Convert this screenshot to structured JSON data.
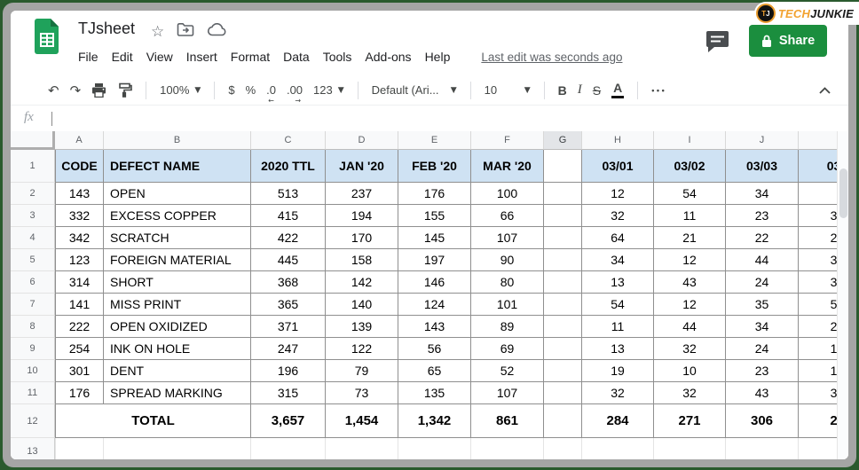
{
  "titlebar": {
    "title": "TJsheet",
    "menu": [
      "File",
      "Edit",
      "View",
      "Insert",
      "Format",
      "Data",
      "Tools",
      "Add-ons",
      "Help"
    ],
    "last_edit": "Last edit was seconds ago",
    "share": "Share",
    "brand_tech": "TECH",
    "brand_junkie": "JUNKIE",
    "brand_t": "T",
    "brand_j": "J"
  },
  "toolbar": {
    "undo": "↶",
    "redo": "↷",
    "zoom": "100%",
    "format_currency": "$",
    "format_percent": "%",
    "decrease_decimal": ".0",
    "increase_decimal": ".00",
    "more_formats": "123",
    "font_family": "Default (Ari...",
    "font_size": "10",
    "bold": "B",
    "italic": "I",
    "strikethrough": "S",
    "text_color": "A",
    "more": "•••"
  },
  "formula_bar": {
    "label": "fx"
  },
  "colors": {
    "share_green": "#1b8e3e",
    "header_fill": "#cfe2f3",
    "brand_orange": "#f2a230",
    "frame_green": "#2a5a2e",
    "frame_gray": "#a5a5a5"
  },
  "grid": {
    "columns": [
      "A",
      "B",
      "C",
      "D",
      "E",
      "F",
      "G",
      "H",
      "I",
      "J",
      ""
    ],
    "selected_column_index": 6,
    "row_numbers": [
      "1",
      "2",
      "3",
      "4",
      "5",
      "6",
      "7",
      "8",
      "9",
      "10",
      "11",
      "12",
      "13"
    ],
    "header": [
      "CODE",
      "DEFECT NAME",
      "2020 TTL",
      "JAN '20",
      "FEB '20",
      "MAR '20",
      "",
      "03/01",
      "03/02",
      "03/03",
      "03"
    ],
    "rows": [
      [
        "143",
        "OPEN",
        "513",
        "237",
        "176",
        "100",
        "",
        "12",
        "54",
        "34",
        ""
      ],
      [
        "332",
        "EXCESS COPPER",
        "415",
        "194",
        "155",
        "66",
        "",
        "32",
        "11",
        "23",
        "3"
      ],
      [
        "342",
        "SCRATCH",
        "422",
        "170",
        "145",
        "107",
        "",
        "64",
        "21",
        "22",
        "2"
      ],
      [
        "123",
        "FOREIGN MATERIAL",
        "445",
        "158",
        "197",
        "90",
        "",
        "34",
        "12",
        "44",
        "3"
      ],
      [
        "314",
        "SHORT",
        "368",
        "142",
        "146",
        "80",
        "",
        "13",
        "43",
        "24",
        "3"
      ],
      [
        "141",
        "MISS PRINT",
        "365",
        "140",
        "124",
        "101",
        "",
        "54",
        "12",
        "35",
        "5"
      ],
      [
        "222",
        "OPEN OXIDIZED",
        "371",
        "139",
        "143",
        "89",
        "",
        "11",
        "44",
        "34",
        "2"
      ],
      [
        "254",
        "INK ON HOLE",
        "247",
        "122",
        "56",
        "69",
        "",
        "13",
        "32",
        "24",
        "1"
      ],
      [
        "301",
        "DENT",
        "196",
        "79",
        "65",
        "52",
        "",
        "19",
        "10",
        "23",
        "1"
      ],
      [
        "176",
        "SPREAD MARKING",
        "315",
        "73",
        "135",
        "107",
        "",
        "32",
        "32",
        "43",
        "3"
      ]
    ],
    "total": [
      "TOTAL",
      "3,657",
      "1,454",
      "1,342",
      "861",
      "",
      "284",
      "271",
      "306",
      "2"
    ]
  }
}
